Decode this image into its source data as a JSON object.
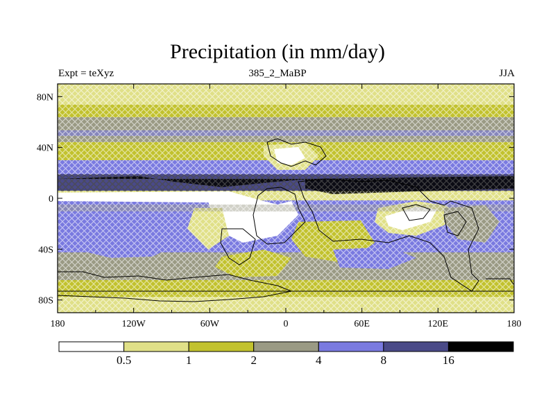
{
  "title": "Precipitation (in mm/day)",
  "left_string": "Expt = teXyz",
  "center_string": "385_2_MaBP",
  "right_string": "JJA",
  "lat_ticks": [
    {
      "value": 80,
      "label": "80N"
    },
    {
      "value": 40,
      "label": "40N"
    },
    {
      "value": 0,
      "label": "0"
    },
    {
      "value": -40,
      "label": "40S"
    },
    {
      "value": -80,
      "label": "80S"
    }
  ],
  "lon_ticks": [
    {
      "value": -180,
      "label": "180"
    },
    {
      "value": -120,
      "label": "120W"
    },
    {
      "value": -60,
      "label": "60W"
    },
    {
      "value": 0,
      "label": "0"
    },
    {
      "value": 60,
      "label": "60E"
    },
    {
      "value": 120,
      "label": "120E"
    },
    {
      "value": 180,
      "label": "180"
    }
  ],
  "colorbar": {
    "levels": [
      "0.5",
      "1",
      "2",
      "4",
      "8",
      "16"
    ],
    "colors": [
      "#ffffff",
      "#e0e088",
      "#c2c22e",
      "#9a9a84",
      "#7a7ae0",
      "#4a4a88",
      "#000000"
    ]
  },
  "chart_data": {
    "type": "heatmap",
    "title": "Precipitation (in mm/day)",
    "variable": "Precipitation",
    "units": "mm/day",
    "season": "JJA",
    "experiment": "teXyz",
    "period": "385_2_MaBP",
    "lon_range": [
      -180,
      180
    ],
    "lat_range": [
      -90,
      90
    ],
    "contour_levels": [
      0.5,
      1,
      2,
      4,
      8,
      16
    ],
    "zonal_bands": [
      {
        "lat_range": [
          70,
          90
        ],
        "band": "1-2"
      },
      {
        "lat_range": [
          55,
          70
        ],
        "band": "2-4"
      },
      {
        "lat_range": [
          40,
          55
        ],
        "band": "2-4"
      },
      {
        "lat_range": [
          25,
          40
        ],
        "band": "1-2"
      },
      {
        "lat_range": [
          15,
          25
        ],
        "band": "4-8"
      },
      {
        "lat_range": [
          8,
          15
        ],
        "band": ">16"
      },
      {
        "lat_range": [
          0,
          8
        ],
        "band": "<0.5"
      },
      {
        "lat_range": [
          -10,
          0
        ],
        "band": "4-8"
      },
      {
        "lat_range": [
          -30,
          -10
        ],
        "band": "4-8"
      },
      {
        "lat_range": [
          -50,
          -30
        ],
        "band": "2-4"
      },
      {
        "lat_range": [
          -70,
          -50
        ],
        "band": "1-2"
      },
      {
        "lat_range": [
          -90,
          -70
        ],
        "band": "0.5-1"
      }
    ]
  }
}
